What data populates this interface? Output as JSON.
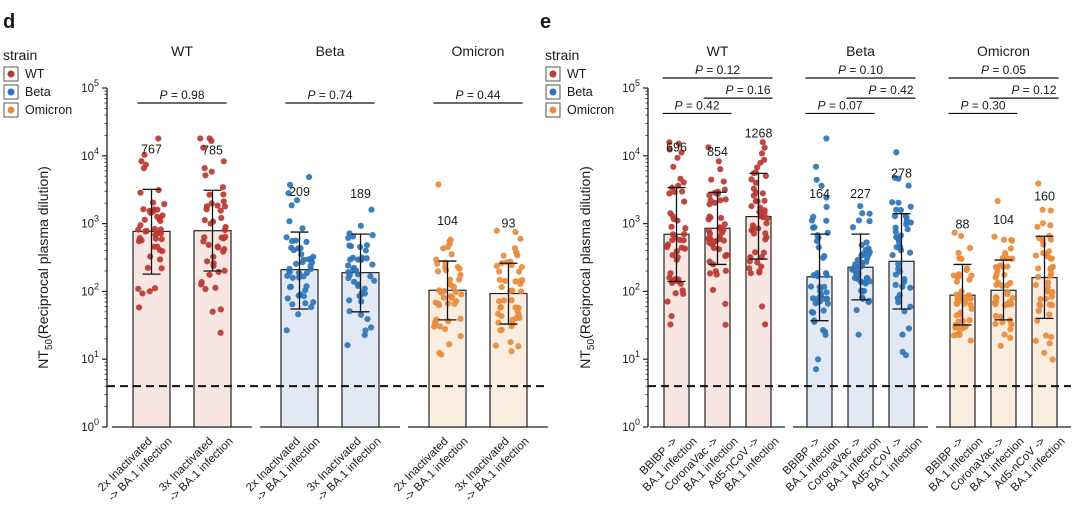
{
  "chart_data": [
    {
      "type": "bar",
      "panel": "d",
      "legend": {
        "title": "strain",
        "entries": [
          {
            "label": "WT",
            "color": "#b83a32"
          },
          {
            "label": "Beta",
            "color": "#2e75b6"
          },
          {
            "label": "Omicron",
            "color": "#e88b3c"
          }
        ]
      },
      "ylabel_main": "NT",
      "ylabel_sub": "50",
      "ylabel_rest": "(Reciprocal plasma dilution)",
      "yscale": "log",
      "ylim": [
        1,
        100000
      ],
      "yticks": [
        1,
        10,
        100,
        1000,
        10000,
        100000
      ],
      "ytick_labels": [
        [
          "10",
          "0"
        ],
        [
          "10",
          "1"
        ],
        [
          "10",
          "2"
        ],
        [
          "10",
          "3"
        ],
        [
          "10",
          "4"
        ],
        [
          "10",
          "5"
        ]
      ],
      "threshold": 4,
      "groups": [
        {
          "name": "WT",
          "color": "#b83a32",
          "fill": "#f7e6e2",
          "bars": [
            {
              "label": "2x Inactivated -> BA.1 infection",
              "lines": [
                "2x Inactivated",
                "-> BA.1 infection"
              ],
              "value": 767,
              "value_label": "767",
              "err_low": 180,
              "err_high": 3200
            },
            {
              "label": "3x Inactivated -> BA.1 infection",
              "lines": [
                "3x Inactivated",
                "-> BA.1 infection"
              ],
              "value": 785,
              "value_label": "785",
              "err_low": 200,
              "err_high": 3100
            }
          ],
          "pvalues": [
            {
              "from": 0,
              "to": 1,
              "label": "P = 0.98"
            }
          ]
        },
        {
          "name": "Beta",
          "color": "#2e75b6",
          "fill": "#e3e9f4",
          "bars": [
            {
              "label": "2x Inactivated -> BA.1 infection",
              "lines": [
                "2x Inactivated",
                "-> BA.1 infection"
              ],
              "value": 209,
              "value_label": "209",
              "err_low": 55,
              "err_high": 750
            },
            {
              "label": "3x Inactivated -> BA.1 infection",
              "lines": [
                "3x Inactivated",
                "-> BA.1 infection"
              ],
              "value": 189,
              "value_label": "189",
              "err_low": 50,
              "err_high": 700
            }
          ],
          "pvalues": [
            {
              "from": 0,
              "to": 1,
              "label": "P = 0.74"
            }
          ]
        },
        {
          "name": "Omicron",
          "color": "#e88b3c",
          "fill": "#fbeee1",
          "bars": [
            {
              "label": "2x Inactivated -> BA.1 infection",
              "lines": [
                "2x Inactivated",
                "-> BA.1 infection"
              ],
              "value": 104,
              "value_label": "104",
              "err_low": 38,
              "err_high": 280
            },
            {
              "label": "3x Inactivated -> BA.1 infection",
              "lines": [
                "3x Inactivated",
                "-> BA.1 infection"
              ],
              "value": 93,
              "value_label": "93",
              "err_low": 33,
              "err_high": 260
            }
          ],
          "pvalues": [
            {
              "from": 0,
              "to": 1,
              "label": "P = 0.44"
            }
          ]
        }
      ]
    },
    {
      "type": "bar",
      "panel": "e",
      "legend": {
        "title": "strain",
        "entries": [
          {
            "label": "WT",
            "color": "#b83a32"
          },
          {
            "label": "Beta",
            "color": "#2e75b6"
          },
          {
            "label": "Omicron",
            "color": "#e88b3c"
          }
        ]
      },
      "ylabel_main": "NT",
      "ylabel_sub": "50",
      "ylabel_rest": "(Reciprocal plasma dilution)",
      "yscale": "log",
      "ylim": [
        1,
        100000
      ],
      "yticks": [
        1,
        10,
        100,
        1000,
        10000,
        100000
      ],
      "ytick_labels": [
        [
          "10",
          "0"
        ],
        [
          "10",
          "1"
        ],
        [
          "10",
          "2"
        ],
        [
          "10",
          "3"
        ],
        [
          "10",
          "4"
        ],
        [
          "10",
          "5"
        ]
      ],
      "threshold": 4,
      "groups": [
        {
          "name": "WT",
          "color": "#b83a32",
          "fill": "#f7e6e2",
          "bars": [
            {
              "label": "BBIBP -> BA.1 infection",
              "lines": [
                "BBIBP ->",
                "BA.1 infection"
              ],
              "value": 696,
              "value_label": "696",
              "err_low": 140,
              "err_high": 3400
            },
            {
              "label": "CoronaVac -> BA.1 infection",
              "lines": [
                "CoronaVac ->",
                "BA.1 infection"
              ],
              "value": 854,
              "value_label": "854",
              "err_low": 250,
              "err_high": 2900
            },
            {
              "label": "Ad5-nCoV -> BA.1 infection",
              "lines": [
                "Ad5-nCoV ->",
                "BA.1 infection"
              ],
              "value": 1268,
              "value_label": "1268",
              "err_low": 300,
              "err_high": 5500
            }
          ],
          "pvalues": [
            {
              "from": 0,
              "to": 1,
              "label": "P = 0.42"
            },
            {
              "from": 1,
              "to": 2,
              "label": "P = 0.16"
            },
            {
              "from": 0,
              "to": 2,
              "label": "P = 0.12"
            }
          ]
        },
        {
          "name": "Beta",
          "color": "#2e75b6",
          "fill": "#e3e9f4",
          "bars": [
            {
              "label": "BBIBP -> BA.1 infection",
              "lines": [
                "BBIBP ->",
                "BA.1 infection"
              ],
              "value": 164,
              "value_label": "164",
              "err_low": 37,
              "err_high": 700
            },
            {
              "label": "CoronaVac -> BA.1 infection",
              "lines": [
                "CoronaVac ->",
                "BA.1 infection"
              ],
              "value": 227,
              "value_label": "227",
              "err_low": 75,
              "err_high": 700
            },
            {
              "label": "Ad5-nCoV -> BA.1 infection",
              "lines": [
                "Ad5-nCoV ->",
                "BA.1 infection"
              ],
              "value": 278,
              "value_label": "278",
              "err_low": 55,
              "err_high": 1400
            }
          ],
          "pvalues": [
            {
              "from": 0,
              "to": 1,
              "label": "P = 0.07"
            },
            {
              "from": 1,
              "to": 2,
              "label": "P = 0.42"
            },
            {
              "from": 0,
              "to": 2,
              "label": "P = 0.10"
            }
          ]
        },
        {
          "name": "Omicron",
          "color": "#e88b3c",
          "fill": "#fbeee1",
          "bars": [
            {
              "label": "BBIBP -> BA.1 infection",
              "lines": [
                "BBIBP ->",
                "BA.1 infection"
              ],
              "value": 88,
              "value_label": "88",
              "err_low": 32,
              "err_high": 250
            },
            {
              "label": "CoronaVac -> BA.1 infection",
              "lines": [
                "CoronaVac ->",
                "BA.1 infection"
              ],
              "value": 104,
              "value_label": "104",
              "err_low": 38,
              "err_high": 290
            },
            {
              "label": "Ad5-nCoV -> BA.1 infection",
              "lines": [
                "Ad5-nCoV ->",
                "BA.1 infection"
              ],
              "value": 160,
              "value_label": "160",
              "err_low": 40,
              "err_high": 650
            }
          ],
          "pvalues": [
            {
              "from": 0,
              "to": 1,
              "label": "P = 0.30"
            },
            {
              "from": 1,
              "to": 2,
              "label": "P = 0.12"
            },
            {
              "from": 0,
              "to": 2,
              "label": "P = 0.05"
            }
          ]
        }
      ]
    }
  ]
}
